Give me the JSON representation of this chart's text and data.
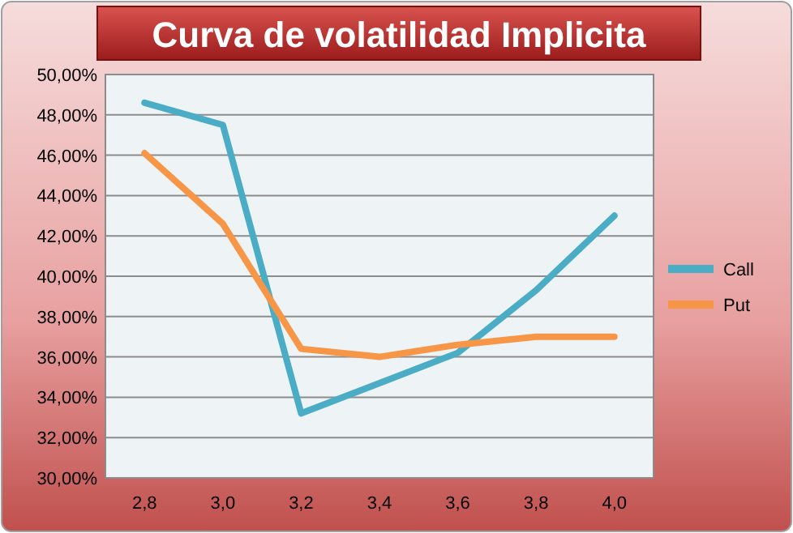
{
  "chart_data": {
    "type": "line",
    "title": "Curva de volatilidad Implicita",
    "categories": [
      "2,8",
      "3,0",
      "3,2",
      "3,4",
      "3,6",
      "3,8",
      "4,0"
    ],
    "series": [
      {
        "name": "Call",
        "color": "#4bacc6",
        "values": [
          48.6,
          47.5,
          33.2,
          34.7,
          36.2,
          39.3,
          43.0
        ]
      },
      {
        "name": "Put",
        "color": "#f79646",
        "values": [
          46.1,
          42.6,
          36.4,
          36.0,
          36.6,
          37.0,
          37.0
        ]
      }
    ],
    "ylim": [
      30,
      50
    ],
    "yticks": [
      {
        "value": 30,
        "label": "30,00%"
      },
      {
        "value": 32,
        "label": "32,00%"
      },
      {
        "value": 34,
        "label": "34,00%"
      },
      {
        "value": 36,
        "label": "36,00%"
      },
      {
        "value": 38,
        "label": "38,00%"
      },
      {
        "value": 40,
        "label": "40,00%"
      },
      {
        "value": 42,
        "label": "42,00%"
      },
      {
        "value": 44,
        "label": "44,00%"
      },
      {
        "value": 46,
        "label": "46,00%"
      },
      {
        "value": 48,
        "label": "48,00%"
      },
      {
        "value": 50,
        "label": "50,00%"
      }
    ],
    "grid": "y",
    "legend": "right",
    "marker": "none",
    "line_style": "solid"
  }
}
